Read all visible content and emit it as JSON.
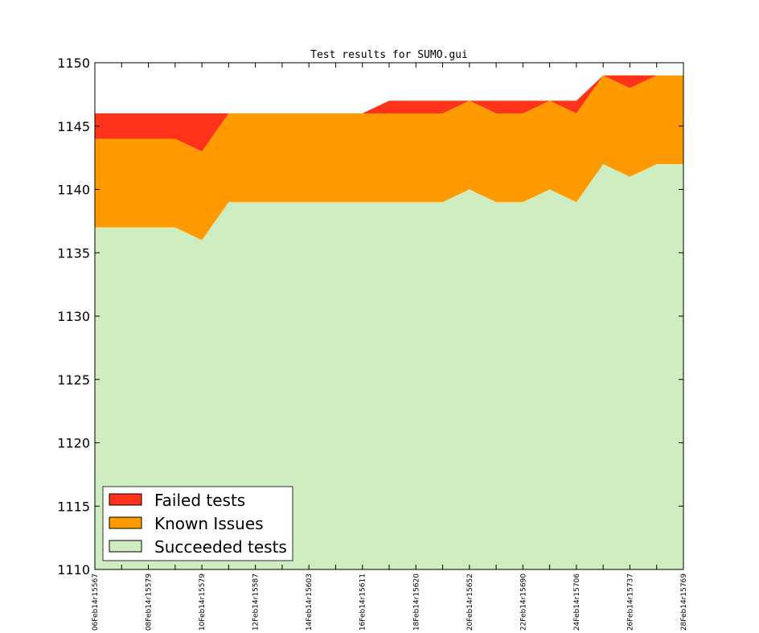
{
  "chart_data": {
    "type": "area",
    "title": "Test results for SUMO.gui",
    "xlabel": "",
    "ylabel": "",
    "ylim": [
      1110,
      1150
    ],
    "yticks": [
      1110,
      1115,
      1120,
      1125,
      1130,
      1135,
      1140,
      1145,
      1150
    ],
    "x_tick_labels": [
      "06Feb14r15567",
      "08Feb14r15579",
      "10Feb14r15579",
      "12Feb14r15587",
      "14Feb14r15603",
      "16Feb14r15611",
      "18Feb14r15620",
      "20Feb14r15652",
      "22Feb14r15690",
      "24Feb14r15706",
      "26Feb14r15737",
      "28Feb14r15769"
    ],
    "x": [
      0,
      1,
      2,
      3,
      4,
      5,
      6,
      7,
      8,
      9,
      10,
      11,
      12,
      13,
      14,
      15,
      16,
      17,
      18,
      19,
      20,
      21,
      22
    ],
    "series": [
      {
        "name": "Succeeded tests",
        "color": "#ceedc0",
        "values": [
          1137,
          1137,
          1137,
          1137,
          1136,
          1139,
          1139,
          1139,
          1139,
          1139,
          1139,
          1139,
          1139,
          1139,
          1140,
          1139,
          1139,
          1140,
          1139,
          1142,
          1141,
          1142,
          1142
        ]
      },
      {
        "name": "Known Issues",
        "color": "#ff9a00",
        "values": [
          7,
          7,
          7,
          7,
          7,
          7,
          7,
          7,
          7,
          7,
          7,
          7,
          7,
          7,
          7,
          7,
          7,
          7,
          7,
          7,
          7,
          7,
          7
        ]
      },
      {
        "name": "Failed tests",
        "color": "#ff331a",
        "values": [
          2,
          2,
          2,
          2,
          3,
          0,
          0,
          0,
          0,
          0,
          0,
          1,
          1,
          1,
          0,
          1,
          1,
          0,
          1,
          0,
          1,
          0,
          0
        ]
      }
    ],
    "legend_position": "bottom-left",
    "grid": false
  }
}
